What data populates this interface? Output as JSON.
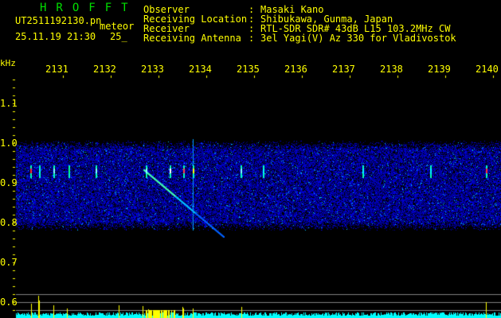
{
  "header": {
    "app_title": "HROFFT",
    "file_name": "UT2511192130.pn",
    "mode": "meteor",
    "datetime": "25.11.19 21:30",
    "count": "25_",
    "info": [
      {
        "label": "Observer",
        "value": "Masaki Kano"
      },
      {
        "label": "Receiving Location",
        "value": "Shibukawa, Gunma, Japan"
      },
      {
        "label": "Receiver",
        "value": "RTL-SDR SDR# 43dB L15 103.2MHz CW"
      },
      {
        "label": "Receiving Antenna",
        "value": "3el Yagi(V) Az 330 for Vladivostok"
      }
    ]
  },
  "axis": {
    "unit": "kHz",
    "freq_labels": [
      "2131",
      "2132",
      "2133",
      "2134",
      "2135",
      "2136",
      "2137",
      "2138",
      "2139",
      "2140"
    ],
    "y_labels": [
      "1.1",
      "1.0",
      "0.9",
      "0.8",
      "0.7",
      "0.6"
    ]
  },
  "colors": {
    "text": "#ffff00",
    "title": "#00e000",
    "noise": "#0000c0",
    "level_bar": "#00ffff",
    "grid": "#808080"
  }
}
